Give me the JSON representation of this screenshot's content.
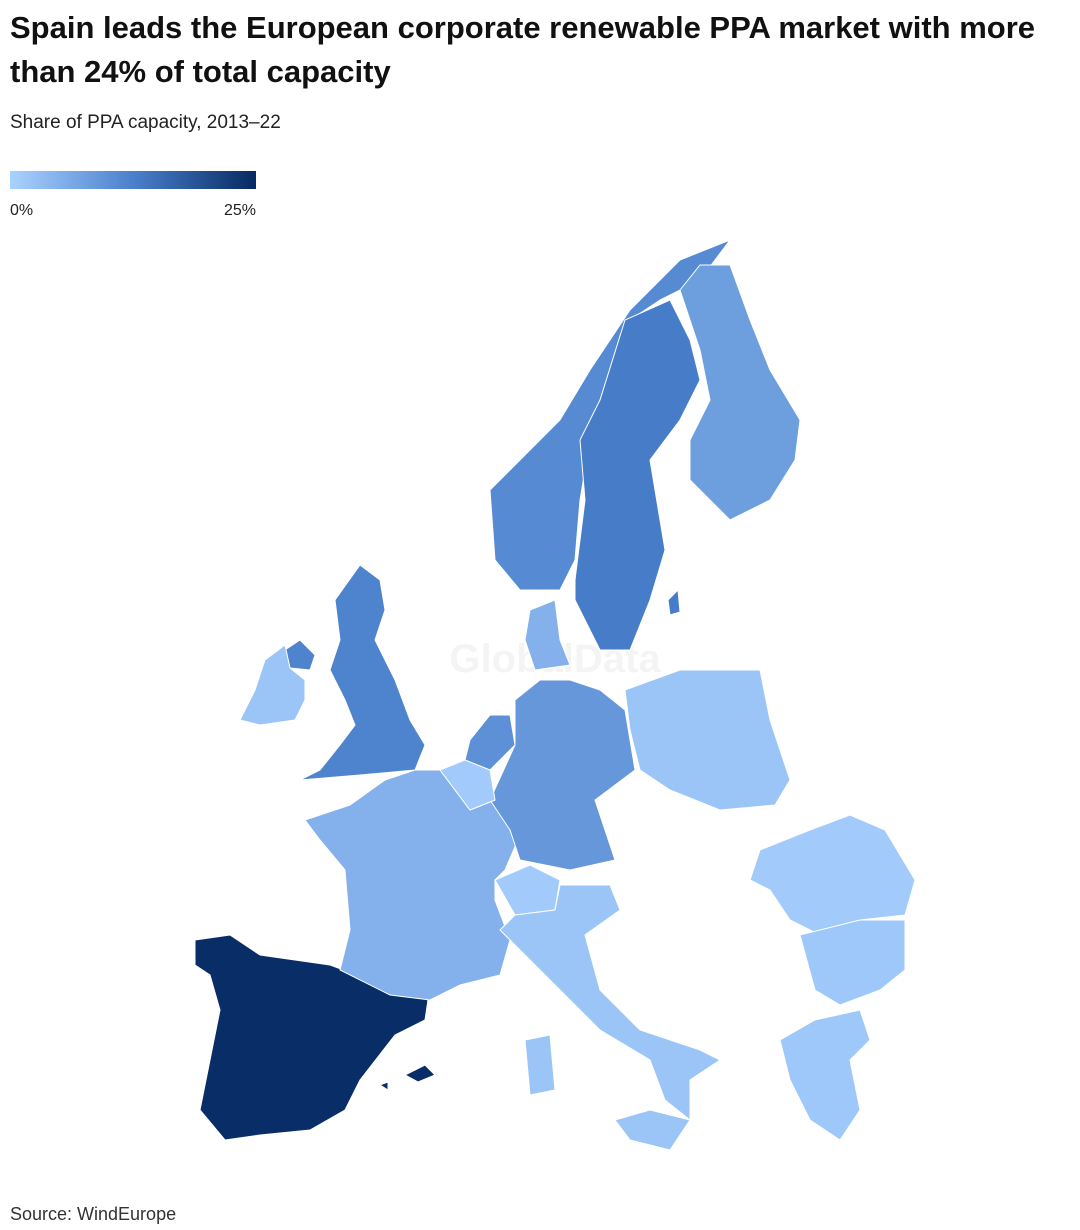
{
  "chart_data": {
    "type": "choropleth",
    "title": "Spain leads the European corporate renewable PPA market with more than 24% of total capacity",
    "subtitle": "Share of PPA capacity, 2013–22",
    "colors": [
      "#aad2ff",
      "#4a80cc",
      "#062a62"
    ],
    "scale": [
      0,
      25
    ],
    "ticks": [
      {
        "value": 0,
        "label": "0%"
      },
      {
        "value": 25,
        "label": "25%"
      }
    ],
    "values": [
      24.5,
      5,
      12,
      2,
      11,
      13,
      8,
      5,
      9,
      10,
      1,
      2,
      1,
      2,
      1,
      1.5,
      1.5
    ],
    "watermark": "GlobalData",
    "source": "Source: WindEurope"
  }
}
